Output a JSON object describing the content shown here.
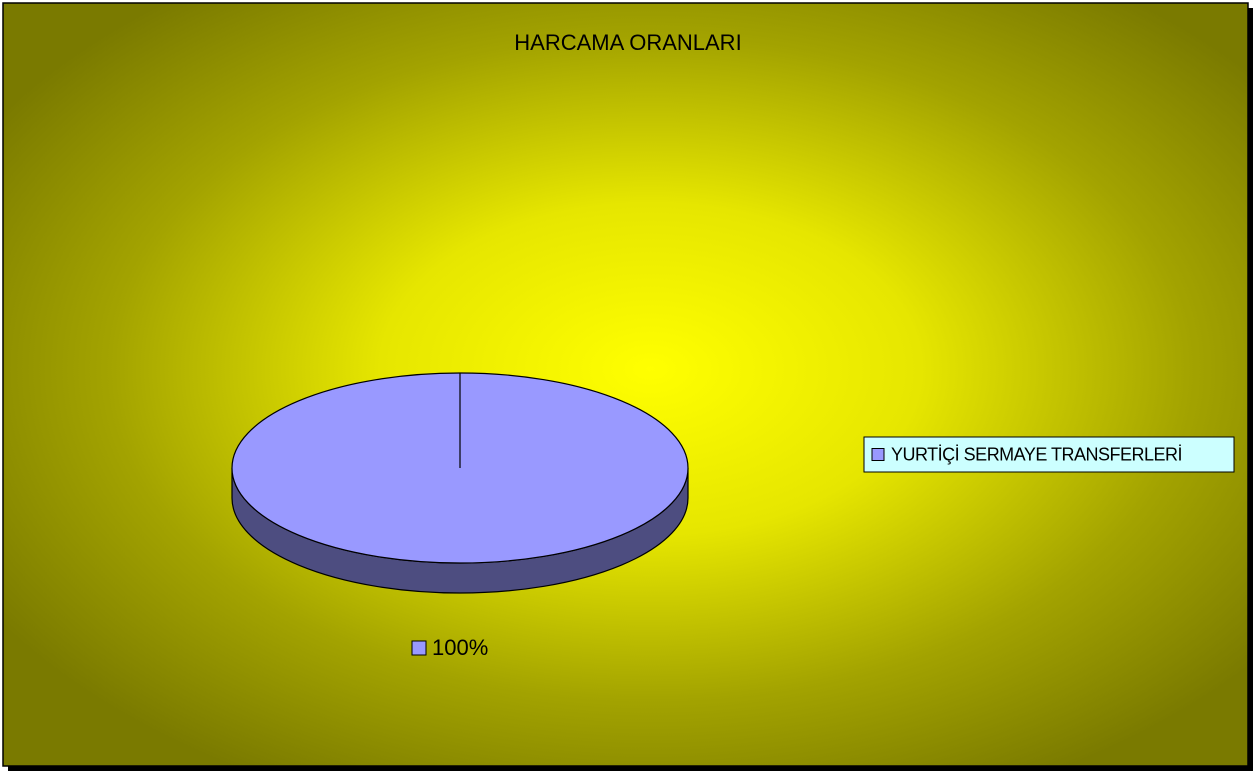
{
  "chart_data": {
    "type": "pie",
    "title": "HARCAMA ORANLARI",
    "categories": [
      "YURTİÇİ SERMAYE TRANSFERLERİ"
    ],
    "values": [
      100
    ],
    "value_labels": [
      "100%"
    ],
    "colors": [
      "#9999ff"
    ],
    "legend": "right"
  }
}
